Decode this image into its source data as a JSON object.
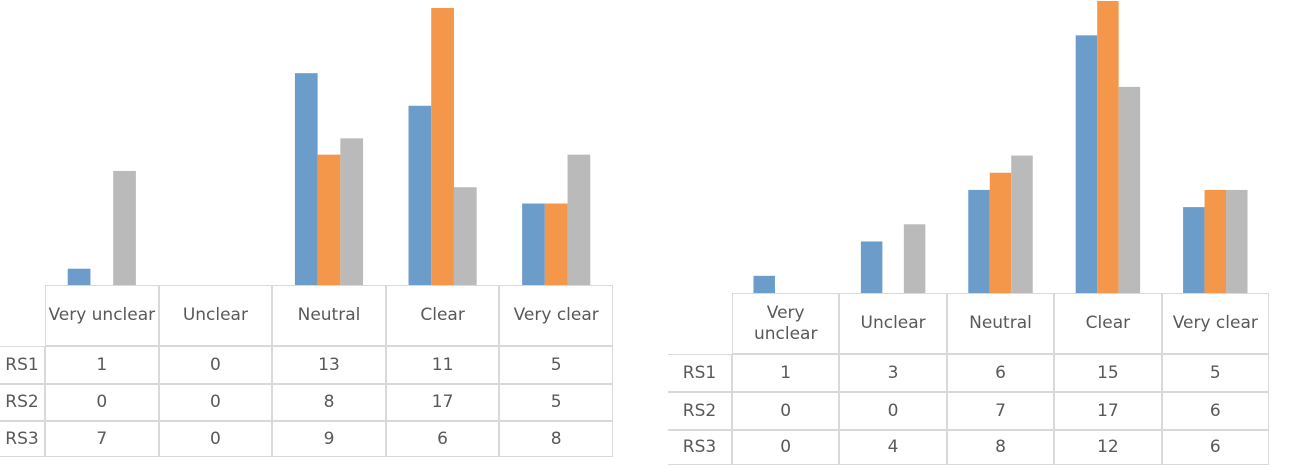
{
  "chart_data": [
    {
      "type": "bar",
      "categories": [
        "Very unclear",
        "Unclear",
        "Neutral",
        "Clear",
        "Very clear"
      ],
      "series": [
        {
          "name": "RS1",
          "color": "#6c9cc9",
          "values": [
            1,
            0,
            13,
            11,
            5
          ]
        },
        {
          "name": "RS2",
          "color": "#f4974b",
          "values": [
            0,
            0,
            8,
            17,
            5
          ]
        },
        {
          "name": "RS3",
          "color": "#bababa",
          "values": [
            7,
            0,
            9,
            6,
            8
          ]
        }
      ]
    },
    {
      "type": "bar",
      "categories": [
        "Very unclear",
        "Unclear",
        "Neutral",
        "Clear",
        "Very clear"
      ],
      "series": [
        {
          "name": "RS1",
          "color": "#6c9cc9",
          "values": [
            1,
            3,
            6,
            15,
            5
          ]
        },
        {
          "name": "RS2",
          "color": "#f4974b",
          "values": [
            0,
            0,
            7,
            17,
            6
          ]
        },
        {
          "name": "RS3",
          "color": "#bababa",
          "values": [
            0,
            4,
            8,
            12,
            6
          ]
        }
      ]
    }
  ]
}
